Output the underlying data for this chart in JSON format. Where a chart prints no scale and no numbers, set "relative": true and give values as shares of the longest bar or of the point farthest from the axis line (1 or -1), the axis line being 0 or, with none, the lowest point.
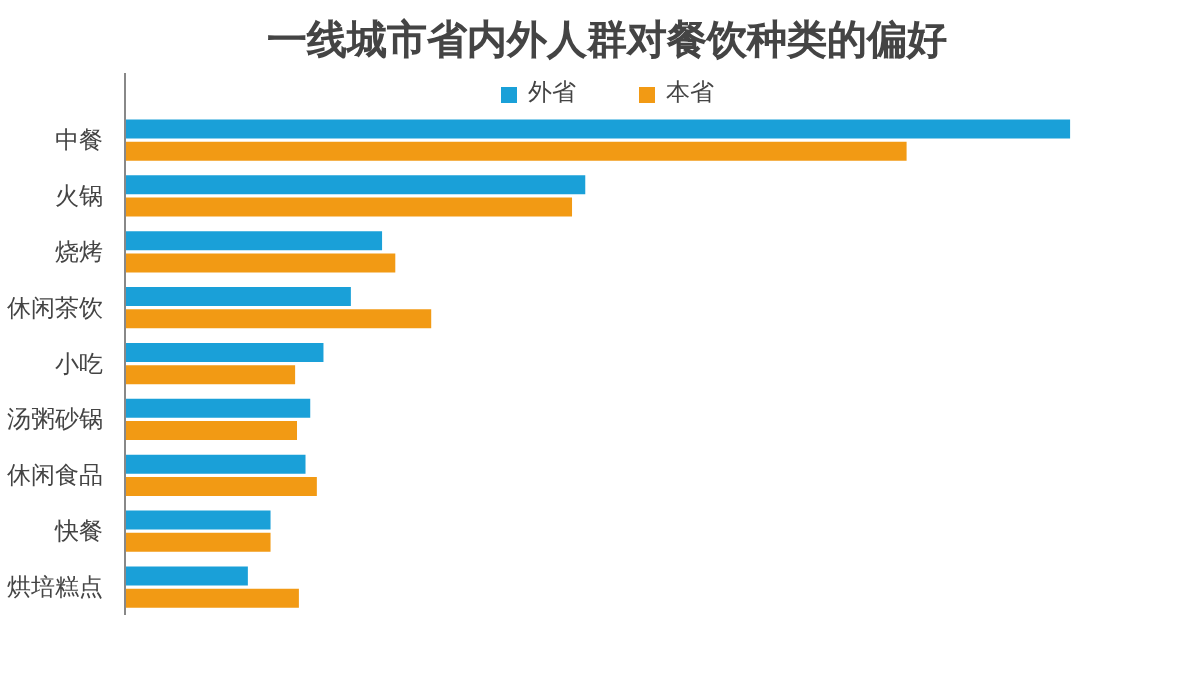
{
  "chart_data": {
    "type": "bar",
    "orientation": "horizontal",
    "relative": true,
    "title": "一线城市省内外人群对餐饮种类的偏好",
    "categories": [
      "中餐",
      "火锅",
      "烧烤",
      "休闲茶饮",
      "小吃",
      "汤粥砂锅",
      "休闲食品",
      "快餐",
      "烘培糕点"
    ],
    "series": [
      {
        "name": "外省",
        "color": "#1aa0d8",
        "values": [
          1.0,
          0.487,
          0.272,
          0.239,
          0.21,
          0.196,
          0.191,
          0.154,
          0.13
        ]
      },
      {
        "name": "本省",
        "color": "#f29a14",
        "values": [
          0.827,
          0.473,
          0.286,
          0.324,
          0.18,
          0.182,
          0.203,
          0.154,
          0.184
        ]
      }
    ],
    "legend": "top"
  }
}
